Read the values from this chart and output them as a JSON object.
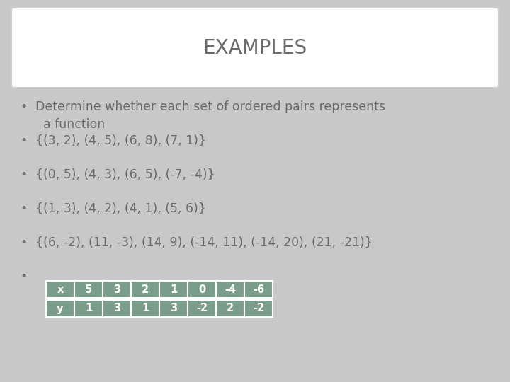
{
  "title": "EXAMPLES",
  "background_color": "#c8c8c8",
  "title_box_color": "#ffffff",
  "title_text_color": "#6b6b6b",
  "bullet_text_color": "#6b6b6b",
  "title_fontsize": 20,
  "bullet_fontsize": 12.5,
  "bullets": [
    "Determine whether each set of ordered pairs represents\n  a function",
    "{(3, 2), (4, 5), (6, 8), (7, 1)}",
    "{(0, 5), (4, 3), (6, 5), (-7, -4)}",
    "{(1, 3), (4, 2), (4, 1), (5, 6)}",
    "{(6, -2), (11, -3), (14, 9), (-14, 11), (-14, 20), (21, -21)}",
    ""
  ],
  "table_x_row": [
    "x",
    "5",
    "3",
    "2",
    "1",
    "0",
    "-4",
    "-6"
  ],
  "table_y_row": [
    "y",
    "1",
    "3",
    "1",
    "3",
    "-2",
    "2",
    "-2"
  ],
  "table_cell_bg": "#7a9e8a",
  "table_text_color": "#ffffff",
  "table_font_size": 10.5
}
